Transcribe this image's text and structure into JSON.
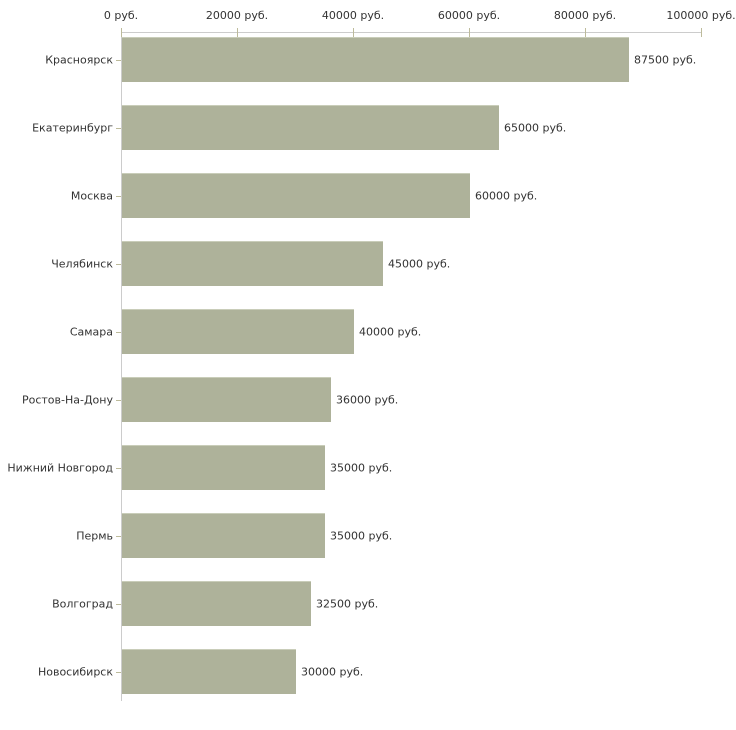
{
  "chart": {
    "background_color": "#ffffff",
    "bar_color": "#aeb29a",
    "bar_top_edge_color": "#c9cdb9",
    "axis_line_color": "#cccccc",
    "tick_mark_color": "#bdbb9b",
    "text_color": "#333333"
  },
  "chart_data": {
    "type": "bar",
    "orientation": "horizontal",
    "title": "",
    "xlabel": "",
    "ylabel": "",
    "categories": [
      "Красноярск",
      "Екатеринбург",
      "Москва",
      "Челябинск",
      "Самара",
      "Ростов-На-Дону",
      "Нижний Новгород",
      "Пермь",
      "Волгоград",
      "Новосибирск"
    ],
    "values": [
      87500,
      65000,
      60000,
      45000,
      40000,
      36000,
      35000,
      35000,
      32500,
      30000
    ],
    "value_labels": [
      "87500 руб.",
      "65000 руб.",
      "60000 руб.",
      "45000 руб.",
      "40000 руб.",
      "36000 руб.",
      "35000 руб.",
      "35000 руб.",
      "32500 руб.",
      "30000 руб."
    ],
    "xlim": [
      0,
      100000
    ],
    "x_ticks": [
      0,
      20000,
      40000,
      60000,
      80000,
      100000
    ],
    "x_tick_labels": [
      "0 руб.",
      "20000 руб.",
      "40000 руб.",
      "60000 руб.",
      "80000 руб.",
      "100000 руб."
    ],
    "grid": false,
    "legend": false
  }
}
